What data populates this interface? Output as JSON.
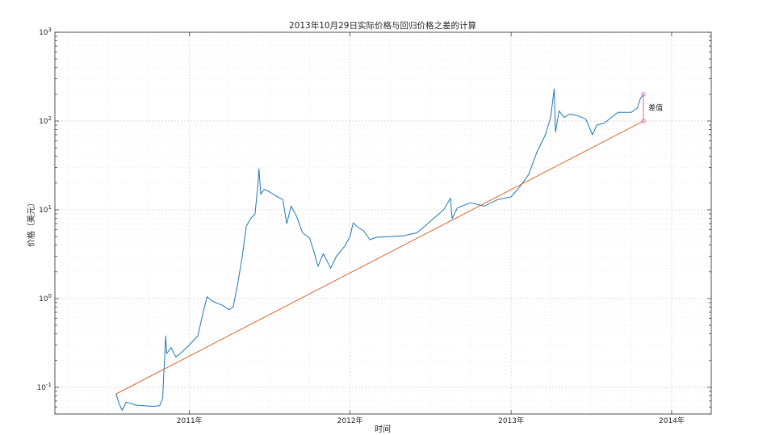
{
  "chart_data": {
    "type": "line",
    "title": "2013年10月29日实际价格与回归价格之差的计算",
    "xlabel": "时间",
    "ylabel": "价格（美元）",
    "yscale": "log",
    "ylim": [
      0.05,
      1000
    ],
    "xlim": [
      "2010-03-01",
      "2014-04-01"
    ],
    "grid": true,
    "x_ticks": [
      {
        "date": "2011-01-01",
        "label": "2011年"
      },
      {
        "date": "2012-01-01",
        "label": "2012年"
      },
      {
        "date": "2013-01-01",
        "label": "2013年"
      },
      {
        "date": "2014-01-01",
        "label": "2014年"
      }
    ],
    "y_ticks": [
      {
        "value": 0.1,
        "base": "10",
        "exp": "-1"
      },
      {
        "value": 1,
        "base": "10",
        "exp": "0"
      },
      {
        "value": 10,
        "base": "10",
        "exp": "1"
      },
      {
        "value": 100,
        "base": "10",
        "exp": "2"
      },
      {
        "value": 1000,
        "base": "10",
        "exp": "3"
      }
    ],
    "series": [
      {
        "kind": "actual",
        "color": "#1f77b4",
        "points": [
          [
            "2010-07-18",
            0.085
          ],
          [
            "2010-07-25",
            0.065
          ],
          [
            "2010-08-01",
            0.055
          ],
          [
            "2010-08-10",
            0.068
          ],
          [
            "2010-08-20",
            0.066
          ],
          [
            "2010-09-01",
            0.063
          ],
          [
            "2010-09-20",
            0.062
          ],
          [
            "2010-10-10",
            0.061
          ],
          [
            "2010-10-25",
            0.062
          ],
          [
            "2010-11-01",
            0.075
          ],
          [
            "2010-11-05",
            0.2
          ],
          [
            "2010-11-08",
            0.38
          ],
          [
            "2010-11-10",
            0.24
          ],
          [
            "2010-11-20",
            0.28
          ],
          [
            "2010-12-01",
            0.22
          ],
          [
            "2010-12-15",
            0.25
          ],
          [
            "2011-01-01",
            0.3
          ],
          [
            "2011-01-20",
            0.38
          ],
          [
            "2011-02-01",
            0.7
          ],
          [
            "2011-02-10",
            1.05
          ],
          [
            "2011-02-20",
            0.95
          ],
          [
            "2011-03-01",
            0.9
          ],
          [
            "2011-03-15",
            0.85
          ],
          [
            "2011-04-01",
            0.75
          ],
          [
            "2011-04-10",
            0.8
          ],
          [
            "2011-04-20",
            1.4
          ],
          [
            "2011-05-01",
            3.0
          ],
          [
            "2011-05-10",
            6.5
          ],
          [
            "2011-05-20",
            8.0
          ],
          [
            "2011-05-30",
            9.0
          ],
          [
            "2011-06-05",
            18.0
          ],
          [
            "2011-06-08",
            29.0
          ],
          [
            "2011-06-12",
            15.0
          ],
          [
            "2011-06-20",
            17.0
          ],
          [
            "2011-07-01",
            16.0
          ],
          [
            "2011-07-15",
            14.5
          ],
          [
            "2011-08-01",
            13.0
          ],
          [
            "2011-08-10",
            7.0
          ],
          [
            "2011-08-20",
            11.0
          ],
          [
            "2011-09-01",
            8.5
          ],
          [
            "2011-09-15",
            5.5
          ],
          [
            "2011-10-01",
            4.8
          ],
          [
            "2011-10-10",
            3.5
          ],
          [
            "2011-10-20",
            2.3
          ],
          [
            "2011-11-01",
            3.2
          ],
          [
            "2011-11-18",
            2.2
          ],
          [
            "2011-12-01",
            3.0
          ],
          [
            "2011-12-20",
            3.9
          ],
          [
            "2012-01-01",
            5.0
          ],
          [
            "2012-01-08",
            7.1
          ],
          [
            "2012-01-20",
            6.3
          ],
          [
            "2012-02-01",
            5.8
          ],
          [
            "2012-02-15",
            4.6
          ],
          [
            "2012-03-01",
            4.9
          ],
          [
            "2012-04-01",
            5.0
          ],
          [
            "2012-05-01",
            5.1
          ],
          [
            "2012-06-01",
            5.5
          ],
          [
            "2012-06-20",
            6.6
          ],
          [
            "2012-07-15",
            8.5
          ],
          [
            "2012-08-01",
            10.0
          ],
          [
            "2012-08-16",
            13.5
          ],
          [
            "2012-08-20",
            8.0
          ],
          [
            "2012-09-01",
            10.5
          ],
          [
            "2012-10-01",
            12.0
          ],
          [
            "2012-11-01",
            11.0
          ],
          [
            "2012-12-01",
            13.0
          ],
          [
            "2013-01-01",
            14.0
          ],
          [
            "2013-01-20",
            18.0
          ],
          [
            "2013-02-10",
            25.0
          ],
          [
            "2013-03-01",
            45.0
          ],
          [
            "2013-03-20",
            70.0
          ],
          [
            "2013-04-01",
            110.0
          ],
          [
            "2013-04-09",
            230.0
          ],
          [
            "2013-04-12",
            75.0
          ],
          [
            "2013-04-20",
            130.0
          ],
          [
            "2013-05-01",
            110.0
          ],
          [
            "2013-05-15",
            120.0
          ],
          [
            "2013-06-01",
            115.0
          ],
          [
            "2013-06-20",
            105.0
          ],
          [
            "2013-07-05",
            70.0
          ],
          [
            "2013-07-15",
            90.0
          ],
          [
            "2013-08-01",
            95.0
          ],
          [
            "2013-09-01",
            125.0
          ],
          [
            "2013-10-01",
            125.0
          ],
          [
            "2013-10-15",
            140.0
          ],
          [
            "2013-10-22",
            180.0
          ],
          [
            "2013-10-29",
            200.0
          ]
        ]
      },
      {
        "kind": "regression",
        "color": "#d95319",
        "points": [
          [
            "2010-07-18",
            0.084
          ],
          [
            "2013-10-29",
            100.0
          ]
        ]
      }
    ],
    "annotations": [
      {
        "text": "差值",
        "date": "2013-10-29",
        "y_from": 100.0,
        "y_to": 200.0,
        "color": "#e377c2"
      }
    ]
  }
}
